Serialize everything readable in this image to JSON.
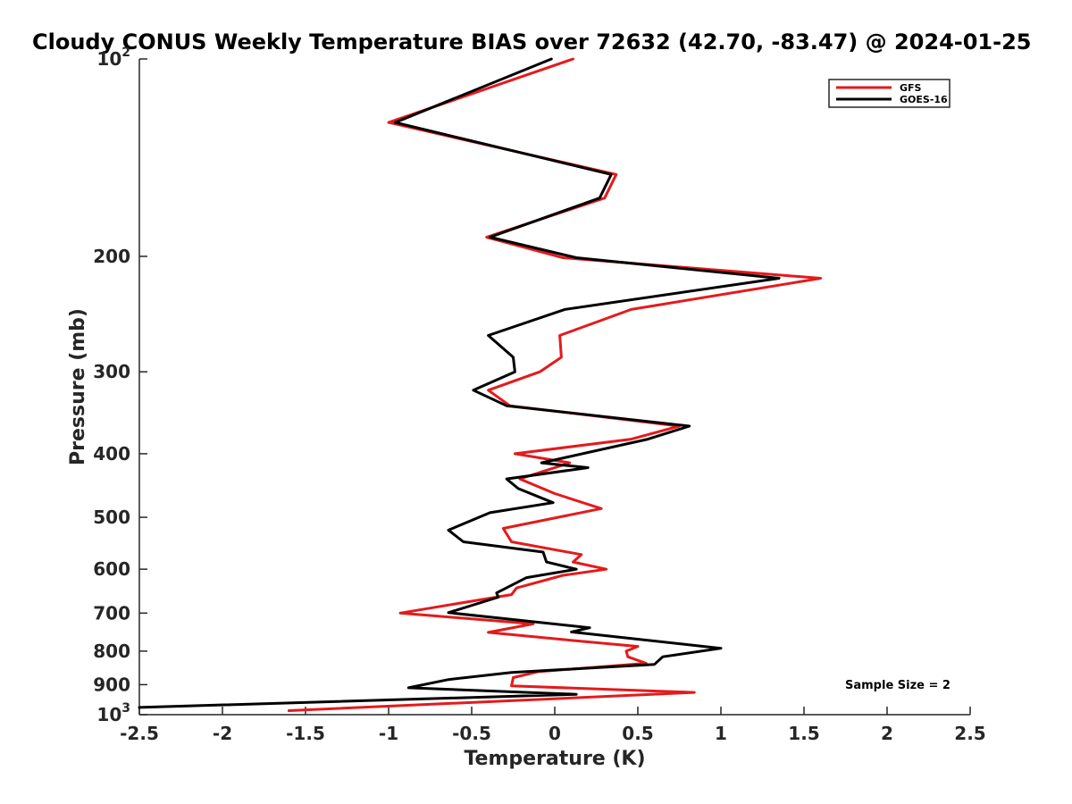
{
  "chart_data": {
    "type": "line",
    "title": "Cloudy CONUS Weekly Temperature BIAS over 72632 (42.70, -83.47) @ 2024-01-25",
    "xlabel": "Temperature (K)",
    "ylabel": "Pressure (mb)",
    "xlim": [
      -2.5,
      2.5
    ],
    "ylim": [
      100,
      1000
    ],
    "y_scale": "log",
    "y_reversed": true,
    "grid": false,
    "legend_position": "top-right",
    "annotation": "Sample Size = 2",
    "x_ticks": [
      {
        "value": -2.5,
        "label": "-2.5"
      },
      {
        "value": -2,
        "label": "-2"
      },
      {
        "value": -1.5,
        "label": "-1.5"
      },
      {
        "value": -1,
        "label": "-1"
      },
      {
        "value": -0.5,
        "label": "-0.5"
      },
      {
        "value": 0,
        "label": "0"
      },
      {
        "value": 0.5,
        "label": "0.5"
      },
      {
        "value": 1,
        "label": "1"
      },
      {
        "value": 1.5,
        "label": "1.5"
      },
      {
        "value": 2,
        "label": "2"
      },
      {
        "value": 2.5,
        "label": "2.5"
      }
    ],
    "y_ticks": [
      {
        "value": 100,
        "base": "10",
        "exp": "2"
      },
      {
        "value": 200,
        "label": "200"
      },
      {
        "value": 300,
        "label": "300"
      },
      {
        "value": 400,
        "label": "400"
      },
      {
        "value": 500,
        "label": "500"
      },
      {
        "value": 600,
        "label": "600"
      },
      {
        "value": 700,
        "label": "700"
      },
      {
        "value": 800,
        "label": "800"
      },
      {
        "value": 900,
        "label": "900"
      },
      {
        "value": 1000,
        "base": "10",
        "exp": "3"
      }
    ],
    "series": [
      {
        "name": "GFS",
        "color": "#e41a1c",
        "points": [
          {
            "t": 0.11,
            "p": 100
          },
          {
            "t": -1.0,
            "p": 125
          },
          {
            "t": 0.37,
            "p": 150
          },
          {
            "t": 0.3,
            "p": 163
          },
          {
            "t": -0.41,
            "p": 187
          },
          {
            "t": 0.05,
            "p": 201
          },
          {
            "t": 1.6,
            "p": 216
          },
          {
            "t": 0.46,
            "p": 241
          },
          {
            "t": 0.03,
            "p": 264
          },
          {
            "t": 0.04,
            "p": 285
          },
          {
            "t": -0.09,
            "p": 300
          },
          {
            "t": -0.4,
            "p": 320
          },
          {
            "t": -0.27,
            "p": 338
          },
          {
            "t": 0.75,
            "p": 363
          },
          {
            "t": 0.46,
            "p": 380
          },
          {
            "t": -0.24,
            "p": 400
          },
          {
            "t": 0.09,
            "p": 413
          },
          {
            "t": -0.21,
            "p": 437
          },
          {
            "t": 0.0,
            "p": 460
          },
          {
            "t": 0.28,
            "p": 485
          },
          {
            "t": -0.31,
            "p": 520
          },
          {
            "t": -0.26,
            "p": 545
          },
          {
            "t": 0.16,
            "p": 570
          },
          {
            "t": 0.11,
            "p": 585
          },
          {
            "t": 0.31,
            "p": 600
          },
          {
            "t": 0.05,
            "p": 613
          },
          {
            "t": -0.23,
            "p": 641
          },
          {
            "t": -0.26,
            "p": 656
          },
          {
            "t": -0.93,
            "p": 700
          },
          {
            "t": -0.13,
            "p": 727
          },
          {
            "t": -0.4,
            "p": 749
          },
          {
            "t": 0.05,
            "p": 768
          },
          {
            "t": 0.5,
            "p": 787
          },
          {
            "t": 0.43,
            "p": 800
          },
          {
            "t": 0.44,
            "p": 816
          },
          {
            "t": 0.55,
            "p": 835
          },
          {
            "t": -0.1,
            "p": 860
          },
          {
            "t": -0.25,
            "p": 878
          },
          {
            "t": -0.26,
            "p": 904
          },
          {
            "t": 0.84,
            "p": 925
          },
          {
            "t": -1.6,
            "p": 986
          }
        ]
      },
      {
        "name": "GOES-16",
        "color": "#000000",
        "points": [
          {
            "t": -0.02,
            "p": 100
          },
          {
            "t": -0.96,
            "p": 125
          },
          {
            "t": 0.34,
            "p": 150
          },
          {
            "t": 0.27,
            "p": 163
          },
          {
            "t": -0.39,
            "p": 187
          },
          {
            "t": 0.13,
            "p": 201
          },
          {
            "t": 1.35,
            "p": 216
          },
          {
            "t": 0.06,
            "p": 241
          },
          {
            "t": -0.4,
            "p": 264
          },
          {
            "t": -0.25,
            "p": 285
          },
          {
            "t": -0.24,
            "p": 300
          },
          {
            "t": -0.49,
            "p": 320
          },
          {
            "t": -0.29,
            "p": 338
          },
          {
            "t": 0.81,
            "p": 363
          },
          {
            "t": 0.56,
            "p": 380
          },
          {
            "t": -0.08,
            "p": 413
          },
          {
            "t": 0.2,
            "p": 420
          },
          {
            "t": -0.29,
            "p": 437
          },
          {
            "t": -0.22,
            "p": 452
          },
          {
            "t": -0.01,
            "p": 475
          },
          {
            "t": -0.39,
            "p": 492
          },
          {
            "t": -0.64,
            "p": 523
          },
          {
            "t": -0.55,
            "p": 545
          },
          {
            "t": -0.07,
            "p": 565
          },
          {
            "t": -0.05,
            "p": 585
          },
          {
            "t": 0.13,
            "p": 600
          },
          {
            "t": -0.17,
            "p": 618
          },
          {
            "t": -0.35,
            "p": 652
          },
          {
            "t": -0.34,
            "p": 662
          },
          {
            "t": -0.64,
            "p": 699
          },
          {
            "t": 0.21,
            "p": 737
          },
          {
            "t": 0.1,
            "p": 748
          },
          {
            "t": 1.0,
            "p": 792
          },
          {
            "t": 0.65,
            "p": 816
          },
          {
            "t": 0.6,
            "p": 838
          },
          {
            "t": -0.26,
            "p": 862
          },
          {
            "t": -0.64,
            "p": 884
          },
          {
            "t": -0.88,
            "p": 910
          },
          {
            "t": 0.13,
            "p": 931
          },
          {
            "t": -2.5,
            "p": 975
          }
        ]
      }
    ]
  }
}
